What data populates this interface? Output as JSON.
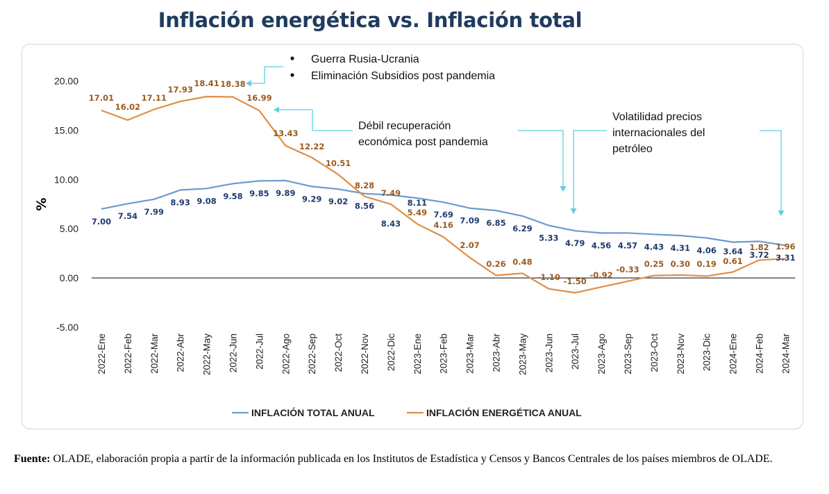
{
  "title": "Inflación energética vs. Inflación total",
  "source": {
    "label": "Fuente:",
    "text": " OLADE, elaboración propia a partir de la información publicada en los Institutos de Estadística y Censos y Bancos Centrales de los países miembros de OLADE."
  },
  "annotations": {
    "bullet1": "Guerra Rusia-Ucrania",
    "bullet2": "Eliminación Subsidios post pandemia",
    "weak_line1": "Débil recuperación",
    "weak_line2": "económica post pandemia",
    "vol_line1": "Volatilidad precios",
    "vol_line2": "internacionales del",
    "vol_line3": "petróleo"
  },
  "colors": {
    "total": "#6b9bd1",
    "energy": "#e08d44",
    "total_label": "#1f3b6e",
    "energy_label": "#9a5a20",
    "arrow": "#5ccfe0"
  },
  "chart_data": {
    "type": "line",
    "ylabel": "%",
    "ylim": [
      -5,
      20
    ],
    "y_ticks": [
      "-5.00",
      "0.00",
      "5.00",
      "10.00",
      "15.00",
      "20.00"
    ],
    "categories": [
      "2022-Ene",
      "2022-Feb",
      "2022-Mar",
      "2022-Abr",
      "2022-May",
      "2022-Jun",
      "2022-Jul",
      "2022-Ago",
      "2022-Sep",
      "2022-Oct",
      "2022-Nov",
      "2022-Dic",
      "2023-Ene",
      "2023-Feb",
      "2023-Mar",
      "2023-Abr",
      "2023-May",
      "2023-Jun",
      "2023-Jul",
      "2023-Ago",
      "2023-Sep",
      "2023-Oct",
      "2023-Nov",
      "2023-Dic",
      "2024-Ene",
      "2024-Feb",
      "2024-Mar"
    ],
    "series": [
      {
        "name": "INFLACIÓN TOTAL ANUAL",
        "values": [
          7.0,
          7.54,
          7.99,
          8.93,
          9.08,
          9.58,
          9.85,
          9.89,
          9.29,
          9.02,
          8.56,
          8.43,
          8.11,
          7.69,
          7.09,
          6.85,
          6.29,
          5.33,
          4.79,
          4.56,
          4.57,
          4.43,
          4.31,
          4.06,
          3.64,
          3.72,
          3.31
        ],
        "labels": [
          "7.00",
          "7.54",
          "7.99",
          "8.93",
          "9.08",
          "9.58",
          "9.85",
          "9.89",
          "9.29",
          "9.02",
          "8.56",
          "8.43",
          "8.11",
          "7.69",
          "7.09",
          "6.85",
          "6.29",
          "5.33",
          "4.79",
          "4.56",
          "4.57",
          "4.43",
          "4.31",
          "4.06",
          "3.64",
          "3.72",
          "3.31"
        ]
      },
      {
        "name": "INFLACIÓN ENERGÉTICA ANUAL",
        "values": [
          17.01,
          16.02,
          17.11,
          17.93,
          18.41,
          18.38,
          16.99,
          13.43,
          12.22,
          10.51,
          8.28,
          7.49,
          5.49,
          4.16,
          2.07,
          0.26,
          0.48,
          -1.1,
          -1.5,
          -0.92,
          -0.33,
          0.25,
          0.3,
          0.19,
          0.61,
          1.82,
          1.96
        ],
        "labels": [
          "17.01",
          "16.02",
          "17.11",
          "17.93",
          "18.41",
          "18.38",
          "16.99",
          "13.43",
          "12.22",
          "10.51",
          "8.28",
          "7.49",
          "5.49",
          "4.16",
          "2.07",
          "0.26",
          "0.48",
          "-1.10",
          "-1.50",
          "-0.92",
          "-0.33",
          "0.25",
          "0.30",
          "0.19",
          "0.61",
          "1.82",
          "1.96"
        ]
      }
    ],
    "legend_position": "bottom",
    "grid": false
  }
}
